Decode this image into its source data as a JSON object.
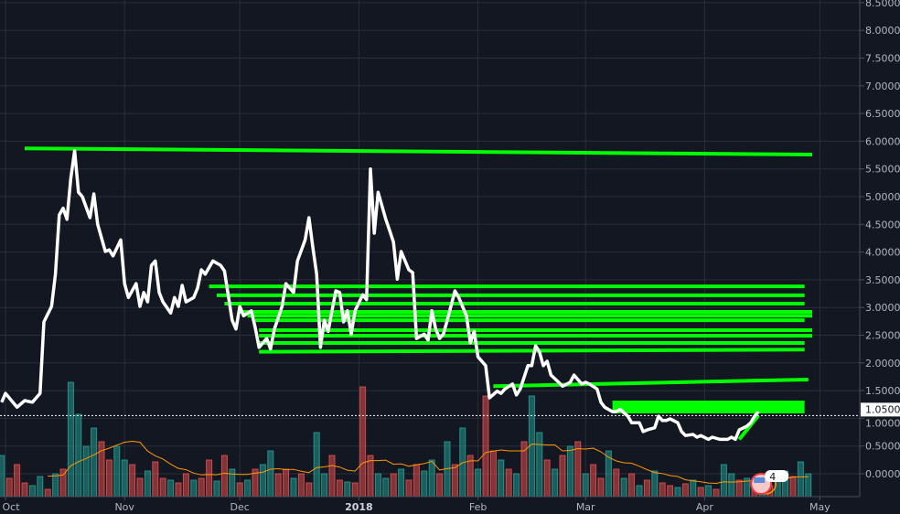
{
  "chart_data": {
    "type": "line",
    "grid": true,
    "background": "#131722",
    "ylim": [
      -0.4,
      8.55
    ],
    "y_ticks": [
      "8.5000",
      "8.0000",
      "7.5000",
      "7.0000",
      "6.5000",
      "6.0000",
      "5.5000",
      "5.0000",
      "4.5000",
      "4.0000",
      "3.5000",
      "3.0000",
      "2.5000",
      "2.0000",
      "1.5000",
      "1.0000",
      "0.5000",
      "0.0000"
    ],
    "x_ticks": [
      {
        "label": "Oct",
        "date": "2017-10-01",
        "bold": false
      },
      {
        "label": "Nov",
        "date": "2017-11-01",
        "bold": false
      },
      {
        "label": "Dec",
        "date": "2017-12-01",
        "bold": false
      },
      {
        "label": "2018",
        "date": "2018-01-01",
        "bold": true
      },
      {
        "label": "Feb",
        "date": "2018-02-01",
        "bold": false
      },
      {
        "label": "Mar",
        "date": "2018-03-01",
        "bold": false
      },
      {
        "label": "Apr",
        "date": "2018-04-01",
        "bold": false
      },
      {
        "label": "May",
        "date": "2018-05-01",
        "bold": false
      }
    ],
    "last_price": {
      "value": 1.05,
      "label": "1.0500"
    },
    "colors": {
      "price": "#ffffff",
      "trendline": "#00ff00",
      "volume_up": "#26a69a",
      "volume_down": "#ef5350",
      "volume_ma": "#ff9800",
      "grid": "#2a2e39"
    },
    "price": [
      [
        "2017-09-30",
        1.29
      ],
      [
        "2017-10-01",
        1.45
      ],
      [
        "2017-10-04",
        1.2
      ],
      [
        "2017-10-06",
        1.32
      ],
      [
        "2017-10-08",
        1.29
      ],
      [
        "2017-10-10",
        1.45
      ],
      [
        "2017-10-11",
        2.74
      ],
      [
        "2017-10-13",
        3.02
      ],
      [
        "2017-10-14",
        3.6
      ],
      [
        "2017-10-15",
        4.67
      ],
      [
        "2017-10-16",
        4.79
      ],
      [
        "2017-10-17",
        4.59
      ],
      [
        "2017-10-18",
        5.33
      ],
      [
        "2017-10-19",
        5.83
      ],
      [
        "2017-10-20",
        5.08
      ],
      [
        "2017-10-21",
        5.0
      ],
      [
        "2017-10-23",
        4.62
      ],
      [
        "2017-10-24",
        5.05
      ],
      [
        "2017-10-25",
        4.5
      ],
      [
        "2017-10-27",
        4.01
      ],
      [
        "2017-10-28",
        4.04
      ],
      [
        "2017-10-29",
        3.93
      ],
      [
        "2017-10-31",
        4.22
      ],
      [
        "2017-11-01",
        3.43
      ],
      [
        "2017-11-02",
        3.18
      ],
      [
        "2017-11-04",
        3.43
      ],
      [
        "2017-11-05",
        3.02
      ],
      [
        "2017-11-06",
        3.27
      ],
      [
        "2017-11-07",
        3.1
      ],
      [
        "2017-11-08",
        3.76
      ],
      [
        "2017-11-09",
        3.84
      ],
      [
        "2017-11-10",
        3.27
      ],
      [
        "2017-11-11",
        3.1
      ],
      [
        "2017-11-13",
        2.9
      ],
      [
        "2017-11-14",
        3.18
      ],
      [
        "2017-11-15",
        3.02
      ],
      [
        "2017-11-16",
        3.4
      ],
      [
        "2017-11-17",
        3.1
      ],
      [
        "2017-11-19",
        3.18
      ],
      [
        "2017-11-20",
        3.35
      ],
      [
        "2017-11-21",
        3.68
      ],
      [
        "2017-11-22",
        3.6
      ],
      [
        "2017-11-24",
        3.84
      ],
      [
        "2017-11-26",
        3.76
      ],
      [
        "2017-11-27",
        3.66
      ],
      [
        "2017-11-29",
        2.77
      ],
      [
        "2017-11-30",
        2.61
      ],
      [
        "2017-12-01",
        3.02
      ],
      [
        "2017-12-02",
        2.85
      ],
      [
        "2017-12-04",
        2.94
      ],
      [
        "2017-12-05",
        2.64
      ],
      [
        "2017-12-06",
        2.28
      ],
      [
        "2017-12-08",
        2.44
      ],
      [
        "2017-12-09",
        2.25
      ],
      [
        "2017-12-10",
        2.61
      ],
      [
        "2017-12-12",
        3.02
      ],
      [
        "2017-12-13",
        3.43
      ],
      [
        "2017-12-15",
        3.27
      ],
      [
        "2017-12-16",
        3.84
      ],
      [
        "2017-12-18",
        4.22
      ],
      [
        "2017-12-19",
        4.62
      ],
      [
        "2017-12-20",
        4.09
      ],
      [
        "2017-12-21",
        3.6
      ],
      [
        "2017-12-22",
        2.28
      ],
      [
        "2017-12-23",
        2.77
      ],
      [
        "2017-12-24",
        2.57
      ],
      [
        "2017-12-25",
        2.94
      ],
      [
        "2017-12-26",
        3.3
      ],
      [
        "2017-12-27",
        3.27
      ],
      [
        "2017-12-28",
        2.74
      ],
      [
        "2017-12-29",
        2.94
      ],
      [
        "2017-12-30",
        2.52
      ],
      [
        "2017-12-31",
        2.94
      ],
      [
        "2018-01-02",
        3.23
      ],
      [
        "2018-01-03",
        3.14
      ],
      [
        "2018-01-04",
        5.5
      ],
      [
        "2018-01-05",
        4.34
      ],
      [
        "2018-01-06",
        5.08
      ],
      [
        "2018-01-08",
        4.59
      ],
      [
        "2018-01-09",
        4.39
      ],
      [
        "2018-01-10",
        4.18
      ],
      [
        "2018-01-11",
        3.51
      ],
      [
        "2018-01-12",
        4.01
      ],
      [
        "2018-01-14",
        3.68
      ],
      [
        "2018-01-15",
        3.63
      ],
      [
        "2018-01-16",
        2.44
      ],
      [
        "2018-01-18",
        2.52
      ],
      [
        "2018-01-19",
        2.41
      ],
      [
        "2018-01-20",
        2.94
      ],
      [
        "2018-01-21",
        2.61
      ],
      [
        "2018-01-22",
        2.44
      ],
      [
        "2018-01-23",
        2.52
      ],
      [
        "2018-01-24",
        2.77
      ],
      [
        "2018-01-26",
        3.3
      ],
      [
        "2018-01-27",
        3.18
      ],
      [
        "2018-01-29",
        2.85
      ],
      [
        "2018-01-30",
        2.36
      ],
      [
        "2018-01-31",
        2.57
      ],
      [
        "2018-02-01",
        2.11
      ],
      [
        "2018-02-03",
        1.95
      ],
      [
        "2018-02-04",
        1.37
      ],
      [
        "2018-02-06",
        1.49
      ],
      [
        "2018-02-07",
        1.45
      ],
      [
        "2018-02-08",
        1.53
      ],
      [
        "2018-02-10",
        1.62
      ],
      [
        "2018-02-11",
        1.42
      ],
      [
        "2018-02-12",
        1.53
      ],
      [
        "2018-02-14",
        1.95
      ],
      [
        "2018-02-15",
        1.95
      ],
      [
        "2018-02-16",
        2.31
      ],
      [
        "2018-02-17",
        2.2
      ],
      [
        "2018-02-18",
        1.95
      ],
      [
        "2018-02-19",
        2.03
      ],
      [
        "2018-02-20",
        1.78
      ],
      [
        "2018-02-22",
        1.65
      ],
      [
        "2018-02-23",
        1.58
      ],
      [
        "2018-02-25",
        1.65
      ],
      [
        "2018-02-26",
        1.78
      ],
      [
        "2018-02-28",
        1.62
      ],
      [
        "2018-03-01",
        1.65
      ],
      [
        "2018-03-02",
        1.62
      ],
      [
        "2018-03-04",
        1.53
      ],
      [
        "2018-03-05",
        1.29
      ],
      [
        "2018-03-06",
        1.2
      ],
      [
        "2018-03-08",
        1.12
      ],
      [
        "2018-03-09",
        1.12
      ],
      [
        "2018-03-10",
        1.16
      ],
      [
        "2018-03-12",
        1.04
      ],
      [
        "2018-03-13",
        0.92
      ],
      [
        "2018-03-15",
        0.92
      ],
      [
        "2018-03-16",
        0.76
      ],
      [
        "2018-03-17",
        0.79
      ],
      [
        "2018-03-19",
        0.83
      ],
      [
        "2018-03-20",
        1.04
      ],
      [
        "2018-03-21",
        0.96
      ],
      [
        "2018-03-22",
        0.96
      ],
      [
        "2018-03-23",
        0.99
      ],
      [
        "2018-03-25",
        0.92
      ],
      [
        "2018-03-26",
        0.76
      ],
      [
        "2018-03-27",
        0.69
      ],
      [
        "2018-03-29",
        0.71
      ],
      [
        "2018-03-30",
        0.66
      ],
      [
        "2018-03-31",
        0.69
      ],
      [
        "2018-04-02",
        0.62
      ],
      [
        "2018-04-03",
        0.66
      ],
      [
        "2018-04-05",
        0.62
      ],
      [
        "2018-04-07",
        0.62
      ],
      [
        "2018-04-08",
        0.66
      ],
      [
        "2018-04-09",
        0.62
      ],
      [
        "2018-04-10",
        0.79
      ],
      [
        "2018-04-12",
        0.86
      ],
      [
        "2018-04-13",
        0.92
      ],
      [
        "2018-04-14",
        1.04
      ],
      [
        "2018-04-15",
        1.12
      ]
    ],
    "trendlines": [
      {
        "from": [
          "2017-10-06",
          5.87
        ],
        "to": [
          "2018-04-29",
          5.76
        ]
      },
      {
        "from": [
          "2017-11-23",
          3.38
        ],
        "to": [
          "2018-04-27",
          3.38
        ]
      },
      {
        "from": [
          "2017-11-25",
          3.22
        ],
        "to": [
          "2018-04-27",
          3.22
        ]
      },
      {
        "from": [
          "2017-11-27",
          3.07
        ],
        "to": [
          "2018-04-27",
          3.07
        ]
      },
      {
        "from": [
          "2017-12-01",
          2.92
        ],
        "to": [
          "2018-04-29",
          2.92
        ]
      },
      {
        "from": [
          "2017-12-03",
          2.85
        ],
        "to": [
          "2018-04-29",
          2.85
        ]
      },
      {
        "from": [
          "2017-12-05",
          2.77
        ],
        "to": [
          "2018-04-27",
          2.77
        ]
      },
      {
        "from": [
          "2017-12-06",
          2.59
        ],
        "to": [
          "2018-04-29",
          2.59
        ]
      },
      {
        "from": [
          "2017-12-06",
          2.49
        ],
        "to": [
          "2018-04-29",
          2.49
        ]
      },
      {
        "from": [
          "2017-12-06",
          2.36
        ],
        "to": [
          "2018-04-27",
          2.36
        ]
      },
      {
        "from": [
          "2017-12-06",
          2.2
        ],
        "to": [
          "2018-04-27",
          2.24
        ]
      },
      {
        "from": [
          "2018-02-05",
          1.58
        ],
        "to": [
          "2018-04-28",
          1.7
        ]
      },
      {
        "from": [
          "2018-04-10",
          0.62
        ],
        "to": [
          "2018-04-15",
          1.05
        ]
      }
    ],
    "zone": {
      "from": "2018-03-08",
      "to": "2018-04-27",
      "low": 1.09,
      "high": 1.32
    },
    "volume": [
      [
        45,
        "u"
      ],
      [
        20,
        "d"
      ],
      [
        35,
        "d"
      ],
      [
        15,
        "d"
      ],
      [
        12,
        "u"
      ],
      [
        22,
        "u"
      ],
      [
        8,
        "d"
      ],
      [
        25,
        "u"
      ],
      [
        30,
        "d"
      ],
      [
        125,
        "u"
      ],
      [
        90,
        "u"
      ],
      [
        55,
        "u"
      ],
      [
        75,
        "u"
      ],
      [
        60,
        "d"
      ],
      [
        40,
        "d"
      ],
      [
        55,
        "u"
      ],
      [
        40,
        "u"
      ],
      [
        35,
        "d"
      ],
      [
        20,
        "d"
      ],
      [
        28,
        "u"
      ],
      [
        38,
        "d"
      ],
      [
        20,
        "d"
      ],
      [
        18,
        "u"
      ],
      [
        15,
        "d"
      ],
      [
        25,
        "d"
      ],
      [
        18,
        "u"
      ],
      [
        20,
        "d"
      ],
      [
        40,
        "d"
      ],
      [
        17,
        "u"
      ],
      [
        45,
        "d"
      ],
      [
        30,
        "u"
      ],
      [
        15,
        "d"
      ],
      [
        18,
        "u"
      ],
      [
        30,
        "d"
      ],
      [
        35,
        "u"
      ],
      [
        50,
        "u"
      ],
      [
        25,
        "d"
      ],
      [
        30,
        "d"
      ],
      [
        20,
        "u"
      ],
      [
        25,
        "d"
      ],
      [
        15,
        "d"
      ],
      [
        70,
        "u"
      ],
      [
        25,
        "u"
      ],
      [
        45,
        "d"
      ],
      [
        18,
        "d"
      ],
      [
        16,
        "u"
      ],
      [
        15,
        "d"
      ],
      [
        120,
        "d"
      ],
      [
        45,
        "d"
      ],
      [
        25,
        "u"
      ],
      [
        20,
        "u"
      ],
      [
        25,
        "d"
      ],
      [
        30,
        "u"
      ],
      [
        18,
        "d"
      ],
      [
        35,
        "d"
      ],
      [
        28,
        "u"
      ],
      [
        40,
        "u"
      ],
      [
        25,
        "d"
      ],
      [
        60,
        "u"
      ],
      [
        35,
        "d"
      ],
      [
        75,
        "u"
      ],
      [
        45,
        "d"
      ],
      [
        30,
        "u"
      ],
      [
        110,
        "d"
      ],
      [
        50,
        "d"
      ],
      [
        40,
        "u"
      ],
      [
        30,
        "d"
      ],
      [
        25,
        "u"
      ],
      [
        60,
        "d"
      ],
      [
        110,
        "u"
      ],
      [
        70,
        "u"
      ],
      [
        40,
        "d"
      ],
      [
        30,
        "u"
      ],
      [
        45,
        "d"
      ],
      [
        55,
        "u"
      ],
      [
        60,
        "d"
      ],
      [
        25,
        "u"
      ],
      [
        35,
        "d"
      ],
      [
        20,
        "d"
      ],
      [
        50,
        "u"
      ],
      [
        30,
        "d"
      ],
      [
        20,
        "u"
      ],
      [
        25,
        "d"
      ],
      [
        12,
        "u"
      ],
      [
        18,
        "d"
      ],
      [
        28,
        "u"
      ],
      [
        15,
        "d"
      ],
      [
        12,
        "d"
      ],
      [
        10,
        "u"
      ],
      [
        14,
        "d"
      ],
      [
        18,
        "u"
      ],
      [
        10,
        "d"
      ],
      [
        12,
        "u"
      ],
      [
        8,
        "d"
      ],
      [
        35,
        "u"
      ],
      [
        25,
        "u"
      ],
      [
        18,
        "d"
      ],
      [
        20,
        "u"
      ],
      [
        15,
        "d"
      ],
      [
        18,
        "u"
      ],
      [
        12,
        "d"
      ],
      [
        20,
        "u"
      ],
      [
        28,
        "u"
      ],
      [
        22,
        "d"
      ],
      [
        38,
        "u"
      ],
      [
        25,
        "u"
      ]
    ],
    "event_marker": {
      "date": "2018-04-15",
      "icon": "us-flag-icon",
      "count": "4"
    }
  }
}
